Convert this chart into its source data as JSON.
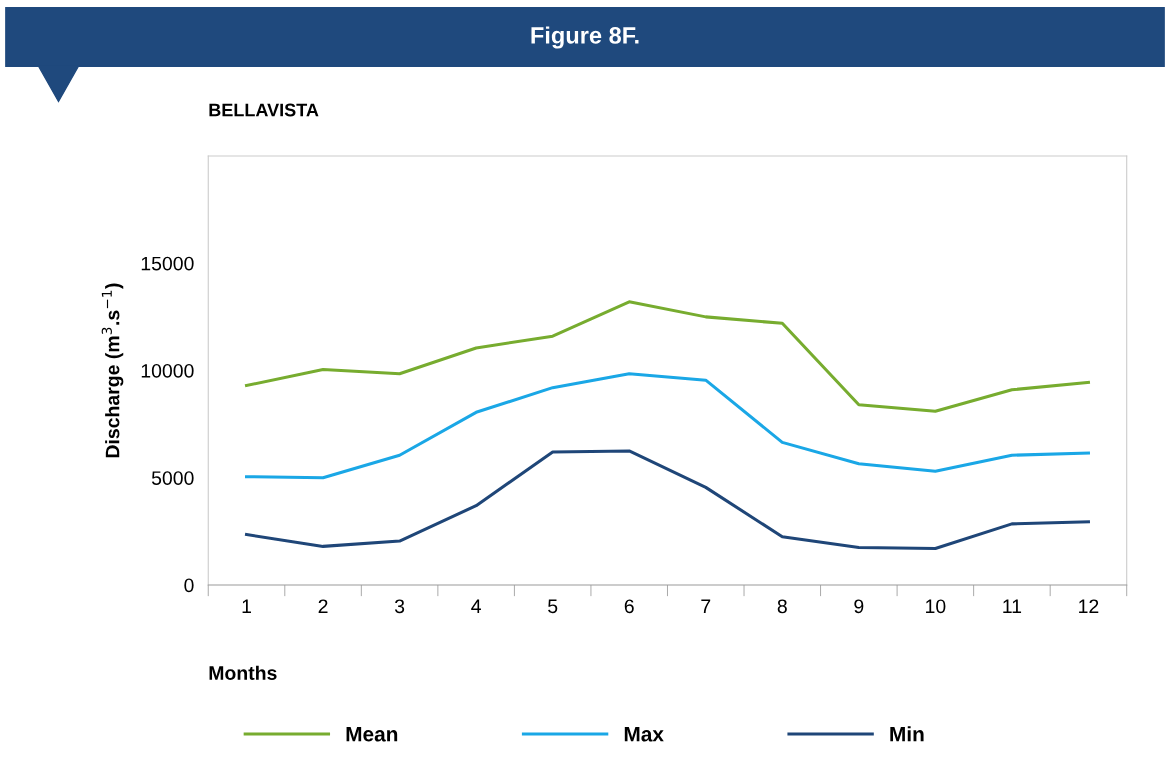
{
  "chart_data": {
    "type": "line",
    "title": "Figure 8F.",
    "subtitle": "BELLAVISTA",
    "xlabel": "Months",
    "ylabel": "Discharge (m$^{3}$.s$^{−1}$)",
    "categories": [
      "1",
      "2",
      "3",
      "4",
      "5",
      "6",
      "7",
      "8",
      "9",
      "10",
      "11",
      "12"
    ],
    "series": [
      {
        "name": "Mean",
        "color": "#77ac2f",
        "values": [
          9300,
          10050,
          9850,
          11050,
          11600,
          13200,
          12500,
          12200,
          8400,
          8100,
          9100,
          9450
        ]
      },
      {
        "name": "Max",
        "color": "#1aa7e6",
        "values": [
          5050,
          5000,
          6050,
          8050,
          9200,
          9850,
          9550,
          6650,
          5650,
          5300,
          6050,
          6150
        ]
      },
      {
        "name": "Min",
        "color": "#1f4678",
        "values": [
          2350,
          1800,
          2050,
          3700,
          6200,
          6250,
          4550,
          2250,
          1750,
          1700,
          2850,
          2950
        ]
      }
    ],
    "ylim": [
      0,
      20000
    ],
    "yticks": [
      0,
      5000,
      10000,
      15000
    ],
    "grid": false,
    "legend": "bottom",
    "marker": "none",
    "line_style": "solid"
  }
}
